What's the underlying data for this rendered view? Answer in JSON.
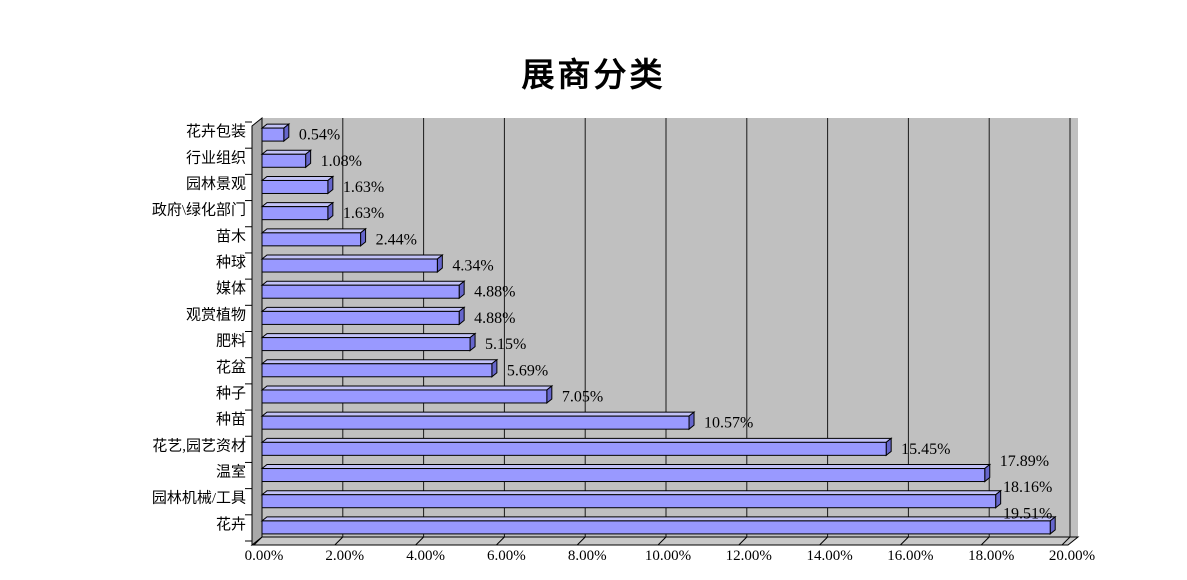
{
  "chart_data": {
    "type": "bar",
    "orientation": "horizontal",
    "title": "展商分类",
    "categories": [
      "花卉包装",
      "行业组织",
      "园林景观",
      "政府\\绿化部门",
      "苗木",
      "种球",
      "媒体",
      "观赏植物",
      "肥料",
      "花盆",
      "种子",
      "种苗",
      "花艺,园艺资材",
      "温室",
      "园林机械/工具",
      "花卉"
    ],
    "values": [
      0.54,
      1.08,
      1.63,
      1.63,
      2.44,
      4.34,
      4.88,
      4.88,
      5.15,
      5.69,
      7.05,
      10.57,
      15.45,
      17.89,
      18.16,
      19.51
    ],
    "value_labels": [
      "0.54%",
      "1.08%",
      "1.63%",
      "1.63%",
      "2.44%",
      "4.34%",
      "4.88%",
      "4.88%",
      "5.15%",
      "5.69%",
      "7.05%",
      "10.57%",
      "15.45%",
      "17.89%",
      "18.16%",
      "19.51%"
    ],
    "x_axis": {
      "min": 0,
      "max": 20,
      "tick_step": 2,
      "tick_labels": [
        "0.00%",
        "2.00%",
        "4.00%",
        "6.00%",
        "8.00%",
        "10.00%",
        "12.00%",
        "14.00%",
        "16.00%",
        "18.00%",
        "20.00%"
      ]
    },
    "gridlines": "vertical",
    "legend": "none",
    "style": {
      "bar_front": "#9999FF",
      "bar_top": "#C2C2F7",
      "bar_side": "#6666CC",
      "bar_outline": "#000000",
      "plot_bg": "#C0C0C0",
      "wall": "#A9A9A9",
      "floor": "#C8C8C8",
      "gridline": "#1A1A1A",
      "text": "#000000",
      "background": "#FFFFFF"
    }
  }
}
